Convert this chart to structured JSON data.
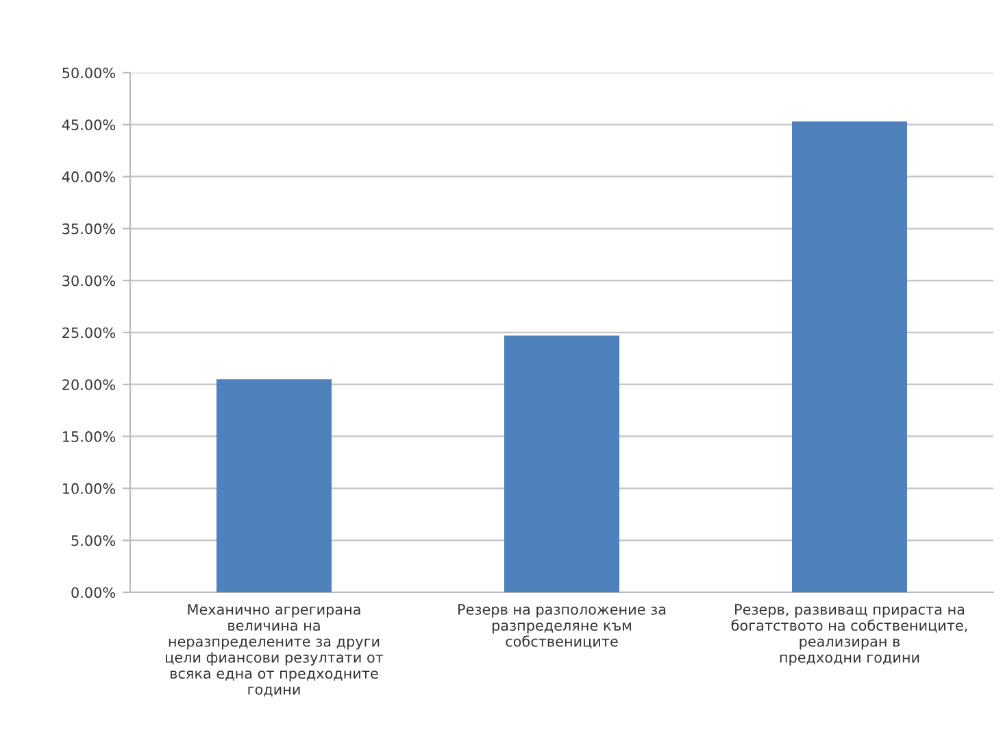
{
  "chart_data": {
    "type": "bar",
    "categories": [
      "Механично агрегирана\nвеличина на\nнеразпределените за други\nцели фиансови резултати от\nвсяка една от предходните\nгодини",
      "Резерв на разположение за\nразпределяне към\nсобствениците",
      "Резерв, развиващ прираста на\nбогатството на собствениците,\nреализиран в\nпредходни години"
    ],
    "values": [
      20.5,
      24.7,
      45.3
    ],
    "color": "#4f81bd",
    "ylim": [
      0,
      50
    ],
    "yticks": [
      {
        "value": 0,
        "label": "0.00%"
      },
      {
        "value": 5,
        "label": "5.00%"
      },
      {
        "value": 10,
        "label": "10.00%"
      },
      {
        "value": 15,
        "label": "15.00%"
      },
      {
        "value": 20,
        "label": "20.00%"
      },
      {
        "value": 25,
        "label": "25.00%"
      },
      {
        "value": 30,
        "label": "30.00%"
      },
      {
        "value": 35,
        "label": "35.00%"
      },
      {
        "value": 40,
        "label": "40.00%"
      },
      {
        "value": 45,
        "label": "45.00%"
      },
      {
        "value": 50,
        "label": "50.00%"
      }
    ],
    "grid": "y"
  }
}
